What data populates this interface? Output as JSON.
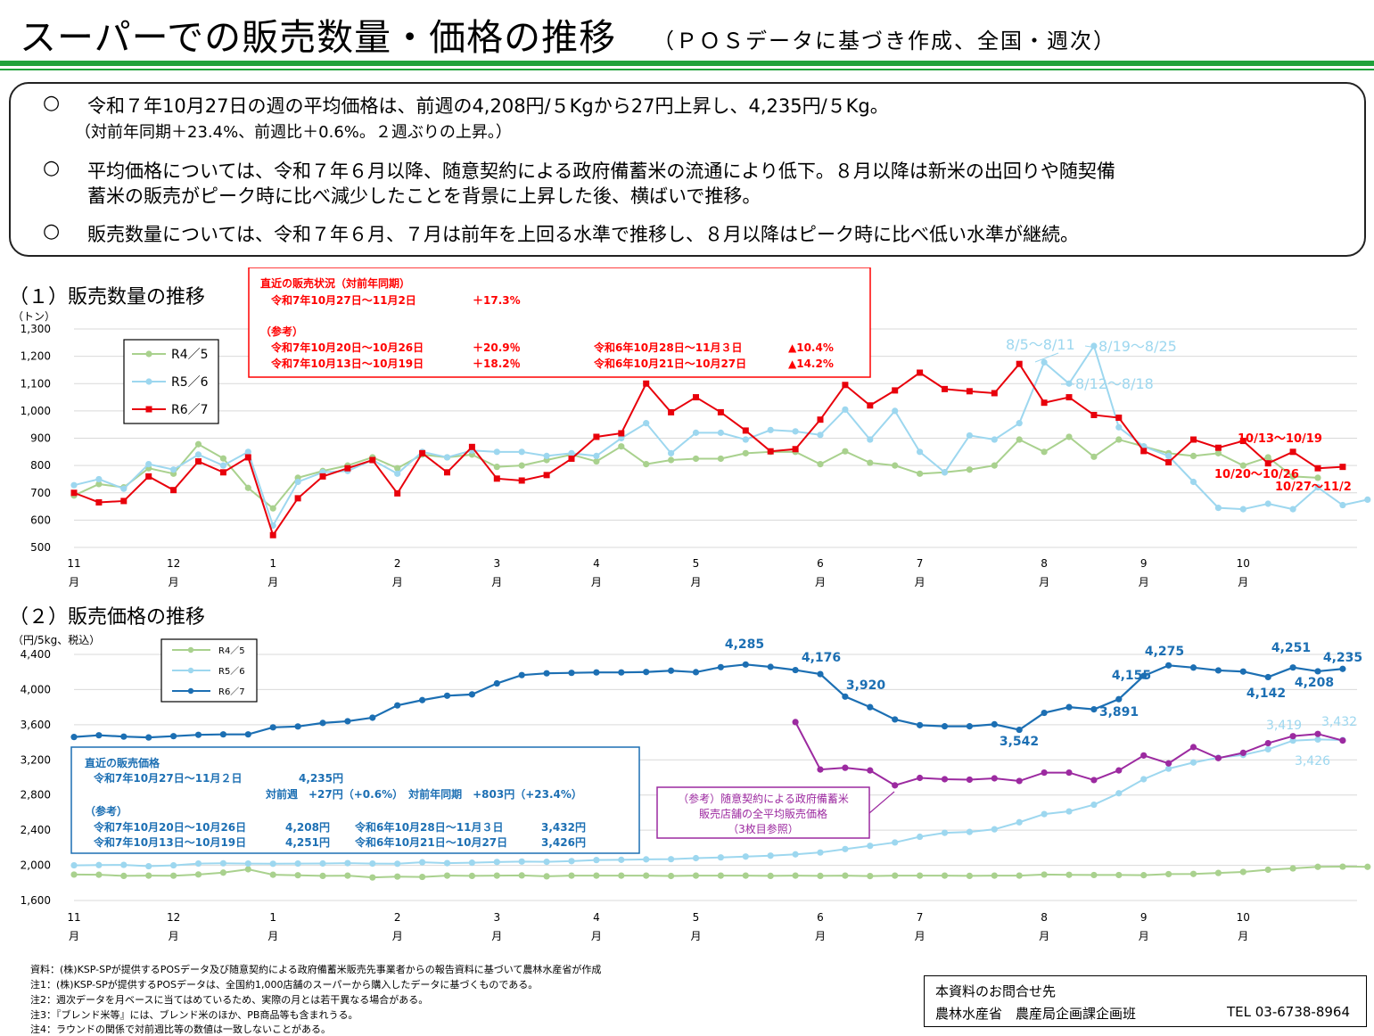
{
  "header": {
    "title": "スーパーでの販売数量・価格の推移",
    "subtitle": "（ＰＯＳデータに基づき作成、全国・週次）"
  },
  "summary": {
    "bullet_symbol": "○",
    "b1_line1": "令和７年10月27日の週の平均価格は、前週の4,208円/５Kgから27円上昇し、4,235円/５Kg。",
    "b1_line2": "（対前年同期＋23.4%、前週比＋0.6%。２週ぶりの上昇。）",
    "b2_line1": "平均価格については、令和７年６月以降、随意契約による政府備蓄米の流通により低下。８月以降は新米の出回りや随契備",
    "b2_line2": "蓄米の販売がピーク時に比べ減少したことを背景に上昇した後、横ばいで推移。",
    "b3_line1": "販売数量については、令和７年６月、７月は前年を上回る水準で推移し、８月以降はピーク時に比べ低い水準が継続。"
  },
  "section1": {
    "title": "（１）販売数量の推移",
    "unit": "（トン）"
  },
  "section2": {
    "title": "（２）販売価格の推移",
    "unit": "（円/5kg、税込）"
  },
  "colors": {
    "r45": "#a9d18e",
    "r56": "#9dd7ef",
    "r67_qty": "#e8000b",
    "r67_price": "#1c6fb3",
    "zuii": "#9c2aa0",
    "green": "#20a23a",
    "red_text": "#ff0000"
  },
  "qty_info": {
    "heading": "直近の販売状況（対前年同期）",
    "latest_period": "令和7年10月27日～11月2日",
    "latest_value": "＋17.3%",
    "ref_heading": "（参考）",
    "ref1_period": "令和7年10月20日～10月26日",
    "ref1_value": "＋20.9％",
    "ref1_prev_period": "令和6年10月28日～11月３日",
    "ref1_prev_value": "▲10.4%",
    "ref2_period": "令和7年10月13日～10月19日",
    "ref2_value": "＋18.2％",
    "ref2_prev_period": "令和6年10月21日～10月27日",
    "ref2_prev_value": "▲14.2%"
  },
  "price_info": {
    "heading": "直近の販売価格",
    "latest_period": "令和7年10月27日～11月２日",
    "latest_value": "4,235円",
    "change_line": "対前週　+27円（+0.6%）　対前年同期　+803円（+23.4%）",
    "ref_heading": "（参考）",
    "ref1_period": "令和7年10月20日～10月26日",
    "ref1_value": "4,208円",
    "ref1_prev_period": "令和6年10月28日～11月３日",
    "ref1_prev_value": "3,432円",
    "ref2_period": "令和7年10月13日～10月19日",
    "ref2_value": "4,251円",
    "ref2_prev_period": "令和6年10月21日～10月27日",
    "ref2_prev_value": "3,426円"
  },
  "zuii_note": {
    "line1": "（参考）随意契約による政府備蓄米",
    "line2": "販売店舗の全平均販売価格",
    "line3": "（3枚目参照）"
  },
  "chart_data": [
    {
      "type": "line",
      "title": "販売数量の推移",
      "ylabel": "（トン）",
      "ylim": [
        500,
        1300
      ],
      "yticks": [
        500,
        600,
        700,
        800,
        900,
        1000,
        1100,
        1200,
        1300
      ],
      "month_labels": [
        "11",
        "12",
        "1",
        "2",
        "3",
        "4",
        "5",
        "6",
        "7",
        "8",
        "9",
        "10"
      ],
      "month_suffix": "月",
      "month_week_index": [
        0,
        4,
        8,
        13,
        17,
        21,
        25,
        30,
        34,
        39,
        43,
        47
      ],
      "series": [
        {
          "name": "R4／5",
          "values": [
            690,
            732,
            720,
            790,
            770,
            878,
            826,
            718,
            643,
            755,
            780,
            800,
            830,
            790,
            840,
            830,
            840,
            795,
            800,
            820,
            840,
            815,
            870,
            805,
            820,
            825,
            825,
            845,
            850,
            850,
            805,
            852,
            810,
            800,
            770,
            775,
            785,
            800,
            895,
            850,
            905,
            832,
            895,
            870,
            845,
            835,
            845,
            800,
            830,
            760,
            755
          ]
        },
        {
          "name": "R5／6",
          "values": [
            728,
            750,
            715,
            805,
            785,
            840,
            800,
            850,
            580,
            740,
            775,
            780,
            820,
            770,
            850,
            830,
            855,
            850,
            850,
            835,
            845,
            835,
            900,
            955,
            845,
            920,
            920,
            895,
            930,
            925,
            912,
            1005,
            895,
            1000,
            850,
            775,
            910,
            895,
            955,
            1178,
            1100,
            1238,
            940,
            870,
            835,
            740,
            645,
            640,
            660,
            640,
            720,
            655,
            675
          ]
        },
        {
          "name": "R6／7",
          "values": [
            700,
            665,
            670,
            760,
            710,
            815,
            775,
            830,
            545,
            680,
            760,
            790,
            820,
            698,
            845,
            775,
            868,
            752,
            745,
            765,
            825,
            905,
            918,
            1100,
            995,
            1050,
            995,
            928,
            852,
            860,
            968,
            1095,
            1020,
            1075,
            1140,
            1080,
            1072,
            1065,
            1172,
            1030,
            1050,
            985,
            975,
            853,
            812,
            895,
            865,
            890,
            808,
            850,
            790,
            795
          ]
        }
      ],
      "annotations": [
        "8/5～8/11",
        "8/19～8/25",
        "8/12～8/18",
        "10/13～10/19",
        "10/20～10/26",
        "10/27～11/2"
      ]
    },
    {
      "type": "line",
      "title": "販売価格の推移",
      "ylabel": "（円/5kg、税込）",
      "ylim": [
        1600,
        4400
      ],
      "yticks": [
        1600,
        2000,
        2400,
        2800,
        3200,
        3600,
        4000,
        4400
      ],
      "month_labels": [
        "11",
        "12",
        "1",
        "2",
        "3",
        "4",
        "5",
        "6",
        "7",
        "8",
        "9",
        "10"
      ],
      "month_suffix": "月",
      "month_week_index": [
        0,
        4,
        8,
        13,
        17,
        21,
        25,
        30,
        34,
        39,
        43,
        47
      ],
      "series": [
        {
          "name": "R4／5",
          "values": [
            1895,
            1893,
            1880,
            1883,
            1882,
            1896,
            1917,
            1955,
            1893,
            1887,
            1880,
            1883,
            1862,
            1872,
            1868,
            1883,
            1880,
            1883,
            1885,
            1875,
            1883,
            1883,
            1883,
            1883,
            1879,
            1883,
            1883,
            1883,
            1880,
            1883,
            1880,
            1883,
            1878,
            1883,
            1883,
            1883,
            1880,
            1883,
            1883,
            1895,
            1892,
            1890,
            1890,
            1888,
            1900,
            1902,
            1913,
            1925,
            1950,
            1965,
            1983,
            1985,
            1983
          ]
        },
        {
          "name": "R5／6",
          "values": [
            2000,
            2003,
            2005,
            1990,
            2000,
            2020,
            2023,
            2020,
            2018,
            2020,
            2021,
            2025,
            2020,
            2018,
            2035,
            2025,
            2030,
            2038,
            2043,
            2040,
            2048,
            2060,
            2063,
            2068,
            2070,
            2082,
            2090,
            2100,
            2110,
            2125,
            2146,
            2185,
            2222,
            2260,
            2325,
            2370,
            2380,
            2410,
            2490,
            2583,
            2614,
            2690,
            2820,
            2980,
            3100,
            3170,
            3225,
            3256,
            3320,
            3419,
            3432,
            3426
          ]
        },
        {
          "name": "R6／7",
          "values": [
            3460,
            3480,
            3465,
            3455,
            3470,
            3485,
            3490,
            3490,
            3570,
            3580,
            3620,
            3640,
            3680,
            3820,
            3880,
            3930,
            3945,
            4070,
            4165,
            4185,
            4190,
            4195,
            4195,
            4200,
            4215,
            4198,
            4255,
            4285,
            4258,
            4222,
            4176,
            3920,
            3800,
            3660,
            3595,
            3582,
            3582,
            3605,
            3542,
            3735,
            3800,
            3775,
            3891,
            4155,
            4275,
            4250,
            4218,
            4205,
            4142,
            4251,
            4208,
            4235
          ]
        },
        {
          "name": "随意契約備蓄米",
          "values": [
            3630,
            3090,
            3110,
            3080,
            2910,
            2995,
            2980,
            2975,
            2990,
            2960,
            3055,
            3055,
            2970,
            3080,
            3250,
            3160,
            3345,
            3220,
            3280,
            3390,
            3470,
            3495,
            3420
          ]
        }
      ],
      "zuii_start_week_index": 29,
      "data_labels": [
        "4,285",
        "4,176",
        "3,920",
        "3,542",
        "3,891",
        "4,155",
        "4,275",
        "4,251",
        "4,142",
        "4,208",
        "4,235",
        "3,419",
        "3,432",
        "3,426"
      ]
    }
  ],
  "legend1": {
    "r45": "R4／5",
    "r56": "R5／6",
    "r67": "R6／7"
  },
  "legend2": {
    "r45": "R4／5",
    "r56": "R5／6",
    "r67": "R6／7"
  },
  "footnotes": {
    "source": "資料：(株)KSP-SPが提供するPOSデータ及び随意契約による政府備蓄米販売先事業者からの報告資料に基づいて農林水産省が作成",
    "note1": "注1：(株)KSP-SPが提供するPOSデータは、全国約1,000店舗のスーパーから購入したデータに基づくものである。",
    "note2": "注2：週次データを月ベースに当てはめているため、実際の月とは若干異なる場合がある。",
    "note3": "注3：『ブレンド米等』には、ブレンド米のほか、PB商品等も含まれうる。",
    "note4": "注4：ラウンドの関係で対前週比等の数値は一致しないことがある。"
  },
  "contact": {
    "title": "本資料のお問合せ先",
    "org": "農林水産省　農産局企画課企画班",
    "tel": "TEL 03-6738-8964"
  }
}
